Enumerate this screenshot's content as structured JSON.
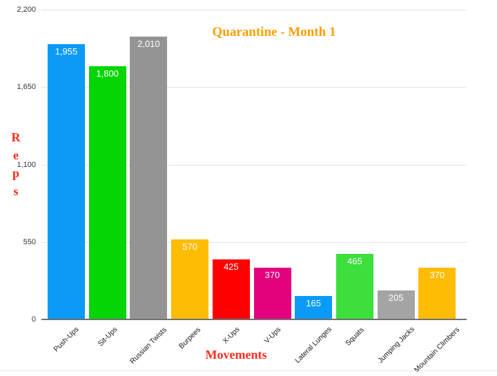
{
  "chart_data": {
    "type": "bar",
    "title": "Quarantine - Month 1",
    "xlabel": "Movements",
    "ylabel": "Reps",
    "categories": [
      "Push-Ups",
      "Sit-Ups",
      "Russian Twists",
      "Burpees",
      "X-Ups",
      "V-Ups",
      "Lateral Lunges",
      "Squats",
      "Jumping Jacks",
      "Mountain Climbers"
    ],
    "values": [
      1955,
      1800,
      2010,
      570,
      425,
      370,
      165,
      465,
      205,
      370
    ],
    "value_labels": [
      "1,955",
      "1,800",
      "2,010",
      "570",
      "425",
      "370",
      "165",
      "465",
      "205",
      "370"
    ],
    "bar_colors": [
      "#0b9bf7",
      "#05d405",
      "#949494",
      "#ffbc05",
      "#ff0000",
      "#e4017d",
      "#0b9bf7",
      "#3cdf3c",
      "#a4a4a4",
      "#ffbc05"
    ],
    "ylim": [
      0,
      2200
    ],
    "yticks": [
      {
        "value": 0,
        "label": "0"
      },
      {
        "value": 550,
        "label": "550"
      },
      {
        "value": 1100,
        "label": "1,100"
      },
      {
        "value": 1650,
        "label": "1,650"
      },
      {
        "value": 2200,
        "label": "2,200"
      }
    ],
    "grid": true,
    "legend": "none",
    "title_color": "#ff9d00",
    "axis_title_color": "#fe2b1c",
    "value_label_color": "#ffffff"
  }
}
